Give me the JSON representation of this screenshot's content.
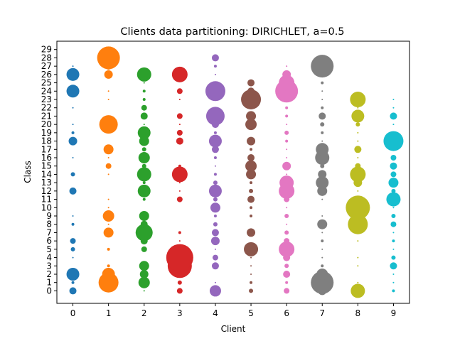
{
  "chart_data": {
    "type": "scatter",
    "title": "Clients data partitioning: DIRICHLET, a=0.5",
    "xlabel": "Client",
    "ylabel": "Class",
    "x_ticks": [
      0,
      1,
      2,
      3,
      4,
      5,
      6,
      7,
      8,
      9
    ],
    "y_ticks": [
      0,
      1,
      2,
      3,
      4,
      5,
      6,
      7,
      8,
      9,
      10,
      11,
      12,
      13,
      14,
      15,
      16,
      17,
      18,
      19,
      20,
      21,
      22,
      23,
      24,
      25,
      26,
      27,
      28,
      29
    ],
    "xlim": [
      -0.45,
      9.45
    ],
    "ylim": [
      -1.5,
      30.0
    ],
    "grid": false,
    "colors": [
      "#1f77b4",
      "#ff7f0e",
      "#2ca02c",
      "#d62728",
      "#9467bd",
      "#8c564b",
      "#e377c2",
      "#7f7f7f",
      "#bcbd22",
      "#17becf"
    ],
    "sizes": [
      [
        5,
        2,
        9,
        0,
        1,
        3,
        4,
        0,
        2,
        1,
        0,
        0,
        5,
        0,
        3,
        0,
        1,
        0,
        6,
        2,
        1,
        0,
        1,
        0,
        9,
        0,
        9,
        1,
        0,
        0
      ],
      [
        2,
        14,
        9,
        2,
        0,
        2,
        0,
        7,
        1,
        8,
        1,
        1,
        0,
        0,
        1,
        4,
        1,
        7,
        0,
        1,
        13,
        0,
        0,
        1,
        1,
        0,
        6,
        5,
        16,
        0
      ],
      [
        1,
        8,
        6,
        7,
        0,
        4,
        5,
        12,
        5,
        7,
        0,
        2,
        9,
        2,
        10,
        3,
        8,
        3,
        7,
        9,
        1,
        5,
        4,
        2,
        2,
        1,
        10,
        0,
        0,
        0
      ],
      [
        4,
        3,
        1,
        17,
        19,
        0,
        1,
        2,
        0,
        0,
        0,
        4,
        1,
        1,
        11,
        2,
        0,
        0,
        5,
        4,
        1,
        4,
        0,
        1,
        4,
        0,
        11,
        0,
        0,
        0
      ],
      [
        8,
        1,
        0,
        5,
        4,
        1,
        6,
        5,
        3,
        2,
        7,
        3,
        9,
        3,
        2,
        1,
        2,
        5,
        9,
        2,
        5,
        13,
        1,
        2,
        14,
        2,
        1,
        2,
        5,
        0
      ],
      [
        3,
        2,
        1,
        1,
        1,
        10,
        0,
        6,
        0,
        2,
        2,
        5,
        3,
        2,
        7,
        8,
        5,
        2,
        6,
        0,
        8,
        7,
        0,
        14,
        5,
        5,
        0,
        0,
        0,
        0
      ],
      [
        4,
        2,
        5,
        3,
        5,
        11,
        4,
        3,
        1,
        3,
        1,
        4,
        11,
        10,
        1,
        6,
        1,
        1,
        2,
        3,
        1,
        2,
        2,
        1,
        16,
        11,
        6,
        1,
        0,
        0
      ],
      [
        6,
        16,
        8,
        2,
        1,
        1,
        2,
        1,
        7,
        1,
        0,
        1,
        7,
        9,
        6,
        3,
        10,
        9,
        1,
        2,
        3,
        5,
        2,
        1,
        1,
        2,
        3,
        16,
        0,
        0
      ],
      [
        10,
        1,
        0,
        1,
        1,
        0,
        1,
        1,
        14,
        1,
        17,
        0,
        1,
        6,
        11,
        4,
        1,
        5,
        1,
        1,
        3,
        9,
        1,
        11,
        0,
        0,
        0,
        0,
        0,
        0
      ],
      [
        2,
        1,
        1,
        5,
        3,
        1,
        2,
        1,
        4,
        3,
        1,
        10,
        3,
        7,
        4,
        5,
        4,
        1,
        14,
        0,
        1,
        5,
        1,
        1,
        0,
        0,
        0,
        0,
        0,
        0
      ]
    ]
  }
}
